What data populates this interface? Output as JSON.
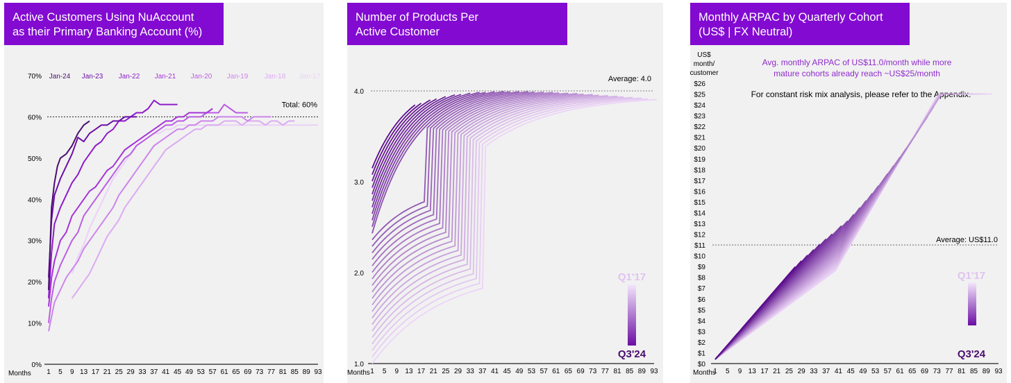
{
  "colors": {
    "brand": "#820ad1",
    "dark": "#4a0e6e",
    "light": "#e6c7f2"
  },
  "chart_data": [
    {
      "type": "line",
      "title": "Active Customers Using NuAccount\nas their Primary Banking Account (%)",
      "xlabel": "Months",
      "ylabel": "",
      "xlim": [
        1,
        93
      ],
      "ylim": [
        0,
        70
      ],
      "x_ticks": [
        "1",
        "5",
        "9",
        "13",
        "17",
        "21",
        "25",
        "29",
        "33",
        "37",
        "41",
        "45",
        "49",
        "53",
        "57",
        "61",
        "65",
        "69",
        "73",
        "77",
        "81",
        "85",
        "89",
        "93"
      ],
      "y_ticks": [
        "0%",
        "10%",
        "20%",
        "30%",
        "40%",
        "50%",
        "60%",
        "70%"
      ],
      "grid": false,
      "legend": "top, inline cohort labels",
      "reference": {
        "value": 60,
        "label": "Total: 60%"
      },
      "series": [
        {
          "name": "Jan-24",
          "color": "#4a0e6e",
          "points": [
            [
              1,
              18
            ],
            [
              2,
              38
            ],
            [
              3,
              44
            ],
            [
              4,
              48
            ],
            [
              5,
              50
            ],
            [
              7,
              51
            ],
            [
              9,
              53
            ],
            [
              11,
              56
            ],
            [
              13,
              58
            ],
            [
              15,
              59
            ]
          ]
        },
        {
          "name": "Jan-23",
          "color": "#6d0fa8",
          "points": [
            [
              1,
              21
            ],
            [
              2,
              35
            ],
            [
              3,
              41
            ],
            [
              5,
              45
            ],
            [
              7,
              48
            ],
            [
              9,
              51
            ],
            [
              11,
              55
            ],
            [
              13,
              54
            ],
            [
              15,
              56
            ],
            [
              17,
              57
            ],
            [
              19,
              58
            ],
            [
              21,
              58
            ],
            [
              23,
              59
            ],
            [
              25,
              59
            ],
            [
              27,
              60
            ],
            [
              29,
              60
            ],
            [
              31,
              60
            ]
          ]
        },
        {
          "name": "Jan-22",
          "color": "#8e1bc8",
          "points": [
            [
              1,
              16
            ],
            [
              2,
              27
            ],
            [
              3,
              34
            ],
            [
              5,
              38
            ],
            [
              7,
              41
            ],
            [
              9,
              44
            ],
            [
              11,
              46
            ],
            [
              13,
              49
            ],
            [
              15,
              51
            ],
            [
              17,
              53
            ],
            [
              19,
              54
            ],
            [
              21,
              56
            ],
            [
              23,
              57
            ],
            [
              25,
              59
            ],
            [
              27,
              59
            ],
            [
              29,
              60
            ],
            [
              31,
              61
            ],
            [
              33,
              61
            ],
            [
              35,
              62
            ],
            [
              37,
              64
            ],
            [
              39,
              63
            ],
            [
              41,
              63
            ],
            [
              43,
              63
            ],
            [
              45,
              63
            ]
          ]
        },
        {
          "name": "Jan-21",
          "color": "#a534d6",
          "points": [
            [
              1,
              14
            ],
            [
              2,
              21
            ],
            [
              3,
              25
            ],
            [
              5,
              30
            ],
            [
              7,
              32
            ],
            [
              9,
              36
            ],
            [
              11,
              38
            ],
            [
              13,
              40
            ],
            [
              15,
              42
            ],
            [
              17,
              43
            ],
            [
              19,
              45
            ],
            [
              21,
              47
            ],
            [
              23,
              48
            ],
            [
              25,
              50
            ],
            [
              27,
              52
            ],
            [
              29,
              53
            ],
            [
              31,
              54
            ],
            [
              33,
              55
            ],
            [
              35,
              56
            ],
            [
              37,
              57
            ],
            [
              39,
              58
            ],
            [
              41,
              59
            ],
            [
              43,
              59
            ],
            [
              45,
              60
            ],
            [
              47,
              60
            ],
            [
              49,
              61
            ],
            [
              51,
              61
            ],
            [
              53,
              61
            ],
            [
              55,
              61
            ],
            [
              57,
              62
            ]
          ]
        },
        {
          "name": "Jan-20",
          "color": "#bb5ce3",
          "points": [
            [
              1,
              10
            ],
            [
              2,
              16
            ],
            [
              3,
              20
            ],
            [
              5,
              24
            ],
            [
              7,
              27
            ],
            [
              9,
              30
            ],
            [
              11,
              32
            ],
            [
              13,
              36
            ],
            [
              15,
              38
            ],
            [
              17,
              40
            ],
            [
              19,
              42
            ],
            [
              21,
              44
            ],
            [
              23,
              46
            ],
            [
              25,
              48
            ],
            [
              27,
              50
            ],
            [
              29,
              51
            ],
            [
              31,
              53
            ],
            [
              33,
              54
            ],
            [
              35,
              55
            ],
            [
              37,
              56
            ],
            [
              39,
              57
            ],
            [
              41,
              58
            ],
            [
              43,
              58
            ],
            [
              45,
              59
            ],
            [
              47,
              59
            ],
            [
              49,
              60
            ],
            [
              51,
              60
            ],
            [
              53,
              60
            ],
            [
              55,
              61
            ],
            [
              57,
              61
            ],
            [
              59,
              61
            ],
            [
              61,
              63
            ],
            [
              63,
              62
            ],
            [
              65,
              61
            ],
            [
              67,
              61
            ],
            [
              69,
              61
            ]
          ]
        },
        {
          "name": "Jan-19",
          "color": "#cd84ec",
          "points": [
            [
              1,
              8
            ],
            [
              3,
              15
            ],
            [
              5,
              18
            ],
            [
              7,
              21
            ],
            [
              9,
              23
            ],
            [
              11,
              25
            ],
            [
              13,
              28
            ],
            [
              15,
              30
            ],
            [
              17,
              32
            ],
            [
              19,
              34
            ],
            [
              21,
              36
            ],
            [
              23,
              38
            ],
            [
              25,
              41
            ],
            [
              27,
              43
            ],
            [
              29,
              45
            ],
            [
              31,
              47
            ],
            [
              33,
              49
            ],
            [
              35,
              51
            ],
            [
              37,
              53
            ],
            [
              39,
              54
            ],
            [
              41,
              55
            ],
            [
              43,
              56
            ],
            [
              45,
              57
            ],
            [
              47,
              57
            ],
            [
              49,
              58
            ],
            [
              51,
              58
            ],
            [
              53,
              59
            ],
            [
              55,
              59
            ],
            [
              57,
              59
            ],
            [
              59,
              60
            ],
            [
              61,
              60
            ],
            [
              63,
              60
            ],
            [
              65,
              60
            ],
            [
              67,
              60
            ],
            [
              69,
              59
            ],
            [
              71,
              60
            ],
            [
              73,
              60
            ],
            [
              75,
              60
            ],
            [
              77,
              60
            ]
          ]
        },
        {
          "name": "Jan-18",
          "color": "#dcaaf2",
          "points": [
            [
              9,
              16
            ],
            [
              11,
              18
            ],
            [
              13,
              20
            ],
            [
              15,
              22
            ],
            [
              17,
              25
            ],
            [
              19,
              28
            ],
            [
              21,
              31
            ],
            [
              23,
              33
            ],
            [
              25,
              35
            ],
            [
              27,
              38
            ],
            [
              29,
              40
            ],
            [
              31,
              42
            ],
            [
              33,
              44
            ],
            [
              35,
              46
            ],
            [
              37,
              48
            ],
            [
              39,
              50
            ],
            [
              41,
              52
            ],
            [
              43,
              53
            ],
            [
              45,
              54
            ],
            [
              47,
              55
            ],
            [
              49,
              56
            ],
            [
              51,
              57
            ],
            [
              53,
              57
            ],
            [
              55,
              58
            ],
            [
              57,
              58
            ],
            [
              59,
              58
            ],
            [
              61,
              59
            ],
            [
              63,
              59
            ],
            [
              65,
              59
            ],
            [
              67,
              58
            ],
            [
              69,
              59
            ],
            [
              71,
              59
            ],
            [
              73,
              59
            ],
            [
              75,
              58
            ],
            [
              77,
              59
            ],
            [
              79,
              59
            ],
            [
              81,
              58
            ],
            [
              83,
              59
            ],
            [
              85,
              59
            ]
          ]
        },
        {
          "name": "Jan-17",
          "color": "#ead2f7",
          "points": [
            [
              9,
              22
            ],
            [
              11,
              26
            ],
            [
              13,
              29
            ],
            [
              15,
              33
            ],
            [
              17,
              36
            ],
            [
              19,
              39
            ],
            [
              21,
              42
            ],
            [
              23,
              45
            ],
            [
              25,
              47
            ],
            [
              27,
              49
            ],
            [
              29,
              51
            ],
            [
              31,
              53
            ],
            [
              33,
              54
            ],
            [
              35,
              55
            ],
            [
              37,
              56
            ],
            [
              39,
              56
            ],
            [
              41,
              57
            ],
            [
              43,
              57
            ],
            [
              45,
              58
            ],
            [
              47,
              58
            ],
            [
              49,
              58
            ],
            [
              51,
              58
            ],
            [
              53,
              58
            ],
            [
              55,
              58
            ],
            [
              57,
              58
            ],
            [
              59,
              58
            ],
            [
              61,
              58
            ],
            [
              63,
              58
            ],
            [
              65,
              58
            ],
            [
              67,
              58
            ],
            [
              69,
              58
            ],
            [
              71,
              58
            ],
            [
              73,
              58
            ],
            [
              75,
              58
            ],
            [
              77,
              58
            ],
            [
              79,
              58
            ],
            [
              81,
              58
            ],
            [
              83,
              58
            ],
            [
              85,
              58
            ],
            [
              87,
              58
            ],
            [
              89,
              58
            ],
            [
              91,
              58
            ],
            [
              93,
              58
            ]
          ]
        }
      ]
    },
    {
      "type": "line",
      "title": "Number of Products Per\nActive Customer",
      "xlabel": "Months",
      "xlim": [
        1,
        93
      ],
      "ylim": [
        1.0,
        4.0
      ],
      "x_ticks": [
        "1",
        "5",
        "9",
        "13",
        "17",
        "21",
        "25",
        "29",
        "33",
        "37",
        "41",
        "45",
        "49",
        "53",
        "57",
        "61",
        "65",
        "69",
        "73",
        "77",
        "81",
        "85",
        "89",
        "93"
      ],
      "y_ticks": [
        "1.0",
        "2.0",
        "3.0",
        "4.0"
      ],
      "grid": false,
      "reference": {
        "value": 4.0,
        "label": "Average: 4.0"
      },
      "legend": {
        "top": "Q1'17",
        "bottom": "Q3'24"
      },
      "cohort_count": 31,
      "series_note": "31 quarterly cohorts from Q3'24 (darkest, starts ~3.0-3.5) to Q1'17 (lightest, starts ~1.0), all rising and plateauing around 4.0-4.2"
    },
    {
      "type": "line",
      "title": "Monthly ARPAC by Quarterly Cohort\n(US$ | FX Neutral)",
      "xlabel": "Months",
      "ylabel": "US$\nmonth/\ncustomer",
      "xlim": [
        1,
        93
      ],
      "ylim": [
        0,
        26
      ],
      "x_ticks": [
        "1",
        "5",
        "9",
        "13",
        "17",
        "21",
        "25",
        "29",
        "33",
        "37",
        "41",
        "45",
        "49",
        "53",
        "57",
        "61",
        "65",
        "69",
        "73",
        "77",
        "81",
        "85",
        "89",
        "93"
      ],
      "y_ticks": [
        "$0",
        "$1",
        "$2",
        "$3",
        "$4",
        "$5",
        "$6",
        "$7",
        "$8",
        "$9",
        "$10",
        "$11",
        "$12",
        "$13",
        "$14",
        "$15",
        "$16",
        "$17",
        "$18",
        "$19",
        "$20",
        "$21",
        "$22",
        "$23",
        "$24",
        "$25",
        "$26"
      ],
      "grid": false,
      "reference": {
        "value": 11.0,
        "label": "Average: US$11.0"
      },
      "annotations": [
        "Avg. monthly ARPAC of US$11.0/month while more\nmature cohorts already reach ~US$25/month",
        "For constant risk mix analysis, please refer to the Appendix."
      ],
      "legend": {
        "top": "Q1'17",
        "bottom": "Q3'24"
      },
      "cohort_count": 31,
      "series_note": "31 quarterly cohorts from Q3'24 (darkest, short) to Q1'17 (lightest, reaches ~$24.5 at month 91)"
    }
  ]
}
